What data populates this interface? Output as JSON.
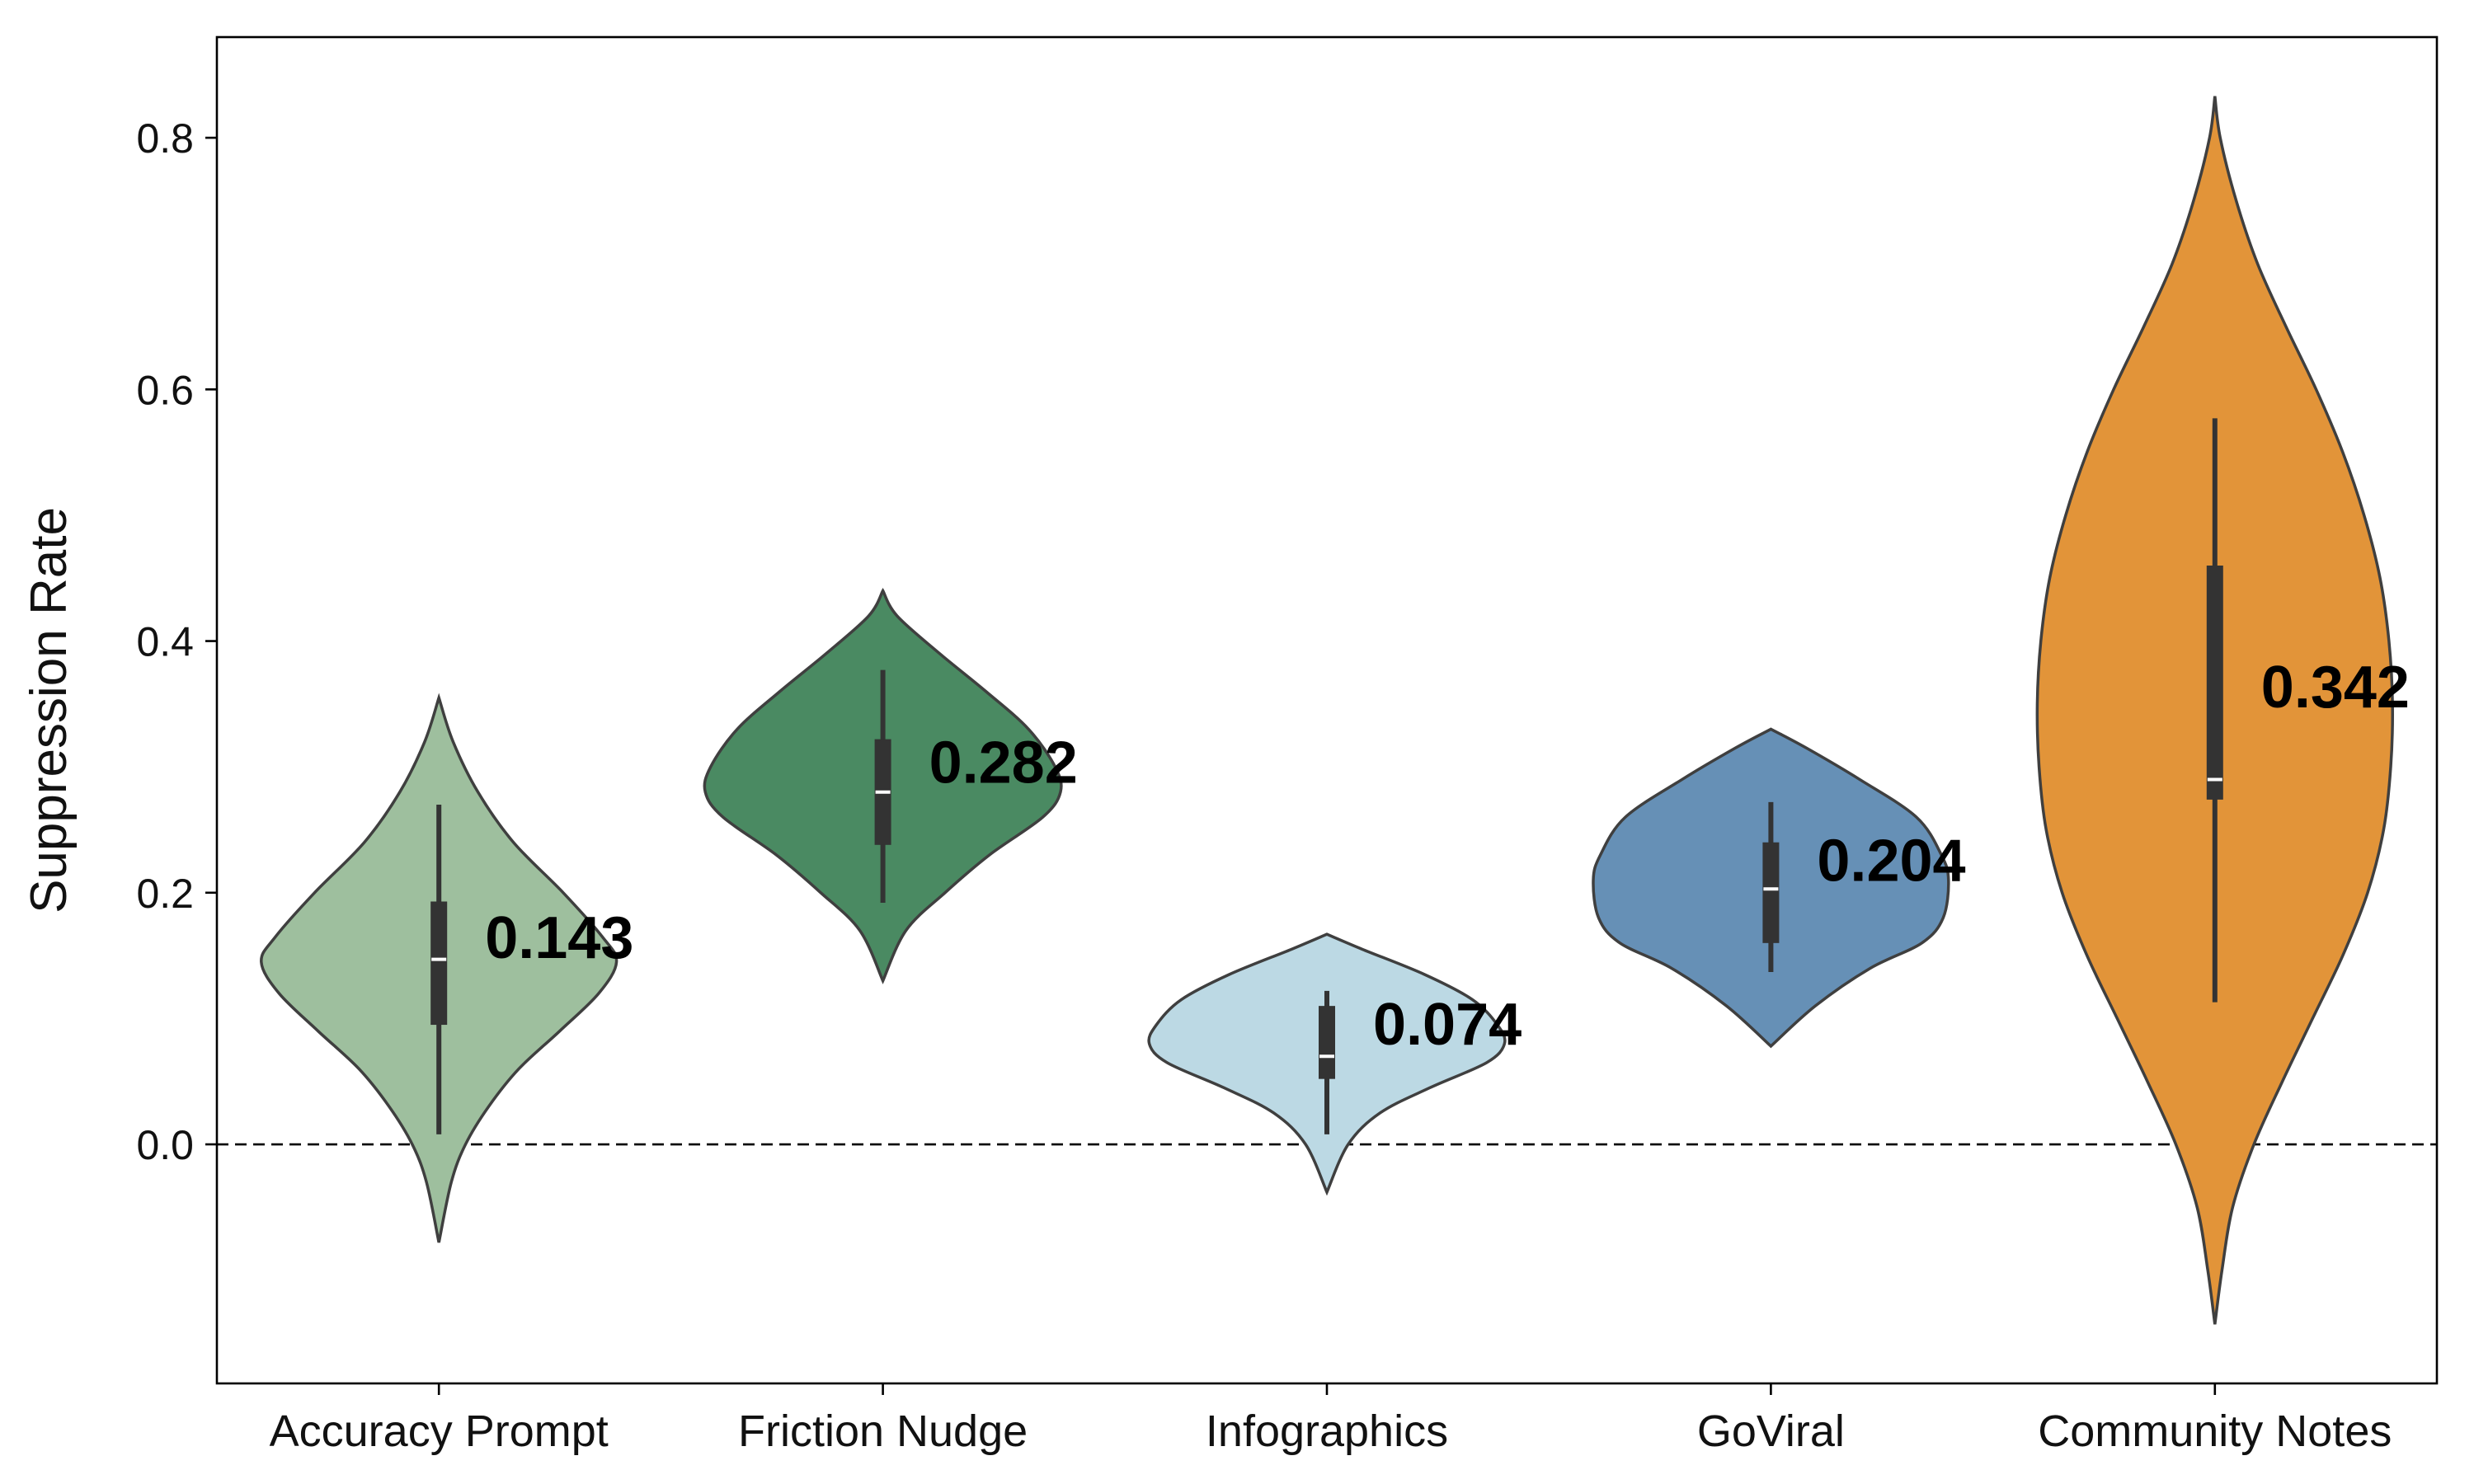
{
  "chart_data": {
    "type": "violin",
    "ylabel": "Suppression Rate",
    "xlabel": "",
    "ylim": [
      -0.19,
      0.88
    ],
    "yticks": [
      0.0,
      0.2,
      0.4,
      0.6,
      0.8
    ],
    "ytick_labels": [
      "0.0",
      "0.2",
      "0.4",
      "0.6",
      "0.8"
    ],
    "reference_line": {
      "y": 0.0,
      "style": "dashed"
    },
    "grid": false,
    "legend": "none",
    "categories": [
      {
        "name": "Accuracy Prompt",
        "mean": 0.143,
        "mean_label": "0.143",
        "median": 0.147,
        "q1": 0.095,
        "q3": 0.193,
        "whisker_low": 0.008,
        "whisker_high": 0.27,
        "kde_min": -0.078,
        "kde_max": 0.355,
        "profile": [
          [
            0.355,
            0.0
          ],
          [
            0.32,
            0.08
          ],
          [
            0.28,
            0.22
          ],
          [
            0.24,
            0.42
          ],
          [
            0.2,
            0.7
          ],
          [
            0.165,
            0.92
          ],
          [
            0.145,
            1.0
          ],
          [
            0.12,
            0.9
          ],
          [
            0.09,
            0.68
          ],
          [
            0.06,
            0.45
          ],
          [
            0.03,
            0.28
          ],
          [
            0.0,
            0.15
          ],
          [
            -0.03,
            0.07
          ],
          [
            -0.078,
            0.0
          ]
        ],
        "color": "#9ebf9e"
      },
      {
        "name": "Friction Nudge",
        "mean": 0.282,
        "mean_label": "0.282",
        "median": 0.28,
        "q1": 0.238,
        "q3": 0.322,
        "whisker_low": 0.192,
        "whisker_high": 0.377,
        "kde_min": 0.13,
        "kde_max": 0.44,
        "profile": [
          [
            0.44,
            0.0
          ],
          [
            0.42,
            0.08
          ],
          [
            0.39,
            0.32
          ],
          [
            0.36,
            0.58
          ],
          [
            0.33,
            0.82
          ],
          [
            0.3,
            0.97
          ],
          [
            0.28,
            1.0
          ],
          [
            0.26,
            0.9
          ],
          [
            0.23,
            0.6
          ],
          [
            0.2,
            0.35
          ],
          [
            0.17,
            0.13
          ],
          [
            0.13,
            0.0
          ]
        ],
        "color": "#4a8a62"
      },
      {
        "name": "Infographics",
        "mean": 0.074,
        "mean_label": "0.074",
        "median": 0.07,
        "q1": 0.052,
        "q3": 0.11,
        "whisker_low": 0.008,
        "whisker_high": 0.122,
        "kde_min": -0.038,
        "kde_max": 0.167,
        "profile": [
          [
            0.167,
            0.0
          ],
          [
            0.155,
            0.2
          ],
          [
            0.135,
            0.55
          ],
          [
            0.115,
            0.82
          ],
          [
            0.095,
            0.96
          ],
          [
            0.08,
            1.0
          ],
          [
            0.065,
            0.9
          ],
          [
            0.045,
            0.58
          ],
          [
            0.025,
            0.3
          ],
          [
            0.0,
            0.12
          ],
          [
            -0.038,
            0.0
          ]
        ],
        "color": "#bcd9e4"
      },
      {
        "name": "GoViral",
        "mean": 0.204,
        "mean_label": "0.204",
        "median": 0.203,
        "q1": 0.16,
        "q3": 0.24,
        "whisker_low": 0.137,
        "whisker_high": 0.272,
        "kde_min": 0.078,
        "kde_max": 0.33,
        "profile": [
          [
            0.33,
            0.0
          ],
          [
            0.315,
            0.2
          ],
          [
            0.29,
            0.5
          ],
          [
            0.26,
            0.82
          ],
          [
            0.23,
            0.96
          ],
          [
            0.21,
            1.0
          ],
          [
            0.18,
            0.97
          ],
          [
            0.16,
            0.85
          ],
          [
            0.14,
            0.56
          ],
          [
            0.11,
            0.25
          ],
          [
            0.078,
            0.0
          ]
        ],
        "color": "#6690b6"
      },
      {
        "name": "Community Notes",
        "mean": 0.342,
        "mean_label": "0.342",
        "median": 0.29,
        "q1": 0.274,
        "q3": 0.46,
        "whisker_low": 0.113,
        "whisker_high": 0.577,
        "kde_min": -0.143,
        "kde_max": 0.833,
        "profile": [
          [
            0.833,
            0.0
          ],
          [
            0.8,
            0.03
          ],
          [
            0.75,
            0.12
          ],
          [
            0.7,
            0.24
          ],
          [
            0.65,
            0.4
          ],
          [
            0.6,
            0.57
          ],
          [
            0.55,
            0.72
          ],
          [
            0.5,
            0.84
          ],
          [
            0.45,
            0.93
          ],
          [
            0.4,
            0.98
          ],
          [
            0.35,
            1.0
          ],
          [
            0.3,
            0.99
          ],
          [
            0.25,
            0.95
          ],
          [
            0.2,
            0.86
          ],
          [
            0.15,
            0.72
          ],
          [
            0.1,
            0.55
          ],
          [
            0.05,
            0.38
          ],
          [
            0.0,
            0.22
          ],
          [
            -0.05,
            0.1
          ],
          [
            -0.1,
            0.04
          ],
          [
            -0.143,
            0.0
          ]
        ],
        "color": "#e29439"
      }
    ]
  }
}
